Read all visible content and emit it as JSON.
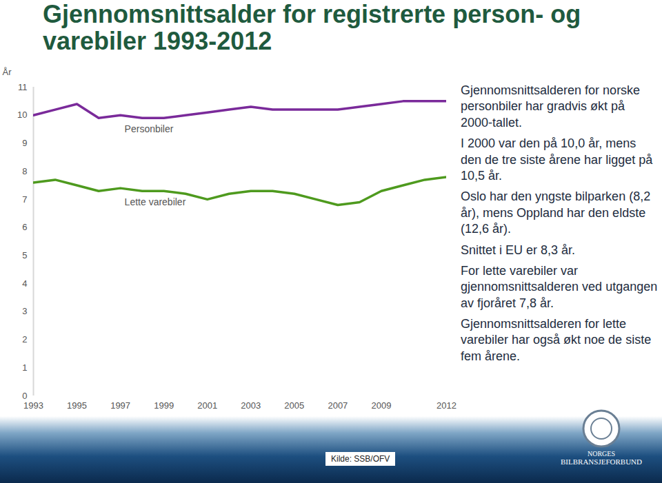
{
  "chart_data": {
    "type": "line",
    "title": "Gjennomsnittsalder for registrerte person- og varebiler 1993-2012",
    "y_label": "År",
    "x": [
      1993,
      1994,
      1995,
      1996,
      1997,
      1998,
      1999,
      2000,
      2001,
      2002,
      2003,
      2004,
      2005,
      2006,
      2007,
      2008,
      2009,
      2010,
      2011,
      2012
    ],
    "series": [
      {
        "name": "Personbiler",
        "color": "#7a2a9a",
        "values": [
          10.0,
          10.2,
          10.4,
          9.9,
          10.0,
          9.9,
          9.9,
          10.0,
          10.1,
          10.2,
          10.3,
          10.2,
          10.2,
          10.2,
          10.2,
          10.3,
          10.4,
          10.5,
          10.5,
          10.5
        ]
      },
      {
        "name": "Lette varebiler",
        "color": "#4e9a1e",
        "values": [
          7.6,
          7.7,
          7.5,
          7.3,
          7.4,
          7.3,
          7.3,
          7.2,
          7.0,
          7.2,
          7.3,
          7.3,
          7.2,
          7.0,
          6.8,
          6.9,
          7.3,
          7.5,
          7.7,
          7.8
        ]
      }
    ],
    "xlim": [
      1993,
      2012
    ],
    "xticks": [
      1993,
      1995,
      1997,
      1999,
      2001,
      2003,
      2005,
      2007,
      2009,
      2012
    ],
    "ylim": [
      0,
      11
    ],
    "yticks": [
      0,
      1,
      2,
      3,
      4,
      5,
      6,
      7,
      8,
      9,
      10,
      11
    ],
    "grid": false,
    "annotations": [
      "Gjennomsnittsalderen for norske personbiler har gradvis økt på 2000-tallet.",
      "I 2000 var den på 10,0 år, mens den de tre siste årene har ligget på 10,5 år.",
      "Oslo har den yngste bilparken (8,2 år), mens Oppland har den eldste (12,6 år).",
      "Snittet i EU er 8,3 år.",
      "For lette varebiler var gjennomsnittsalderen ved utgangen av fjoråret 7,8 år.",
      "Gjennomsnittsalderen for lette varebiler har også økt noe de siste fem årene."
    ],
    "source": "Kilde: SSB/OFV",
    "logo_text": [
      "NORGES",
      "BILBRANSJEFORBUND"
    ]
  }
}
